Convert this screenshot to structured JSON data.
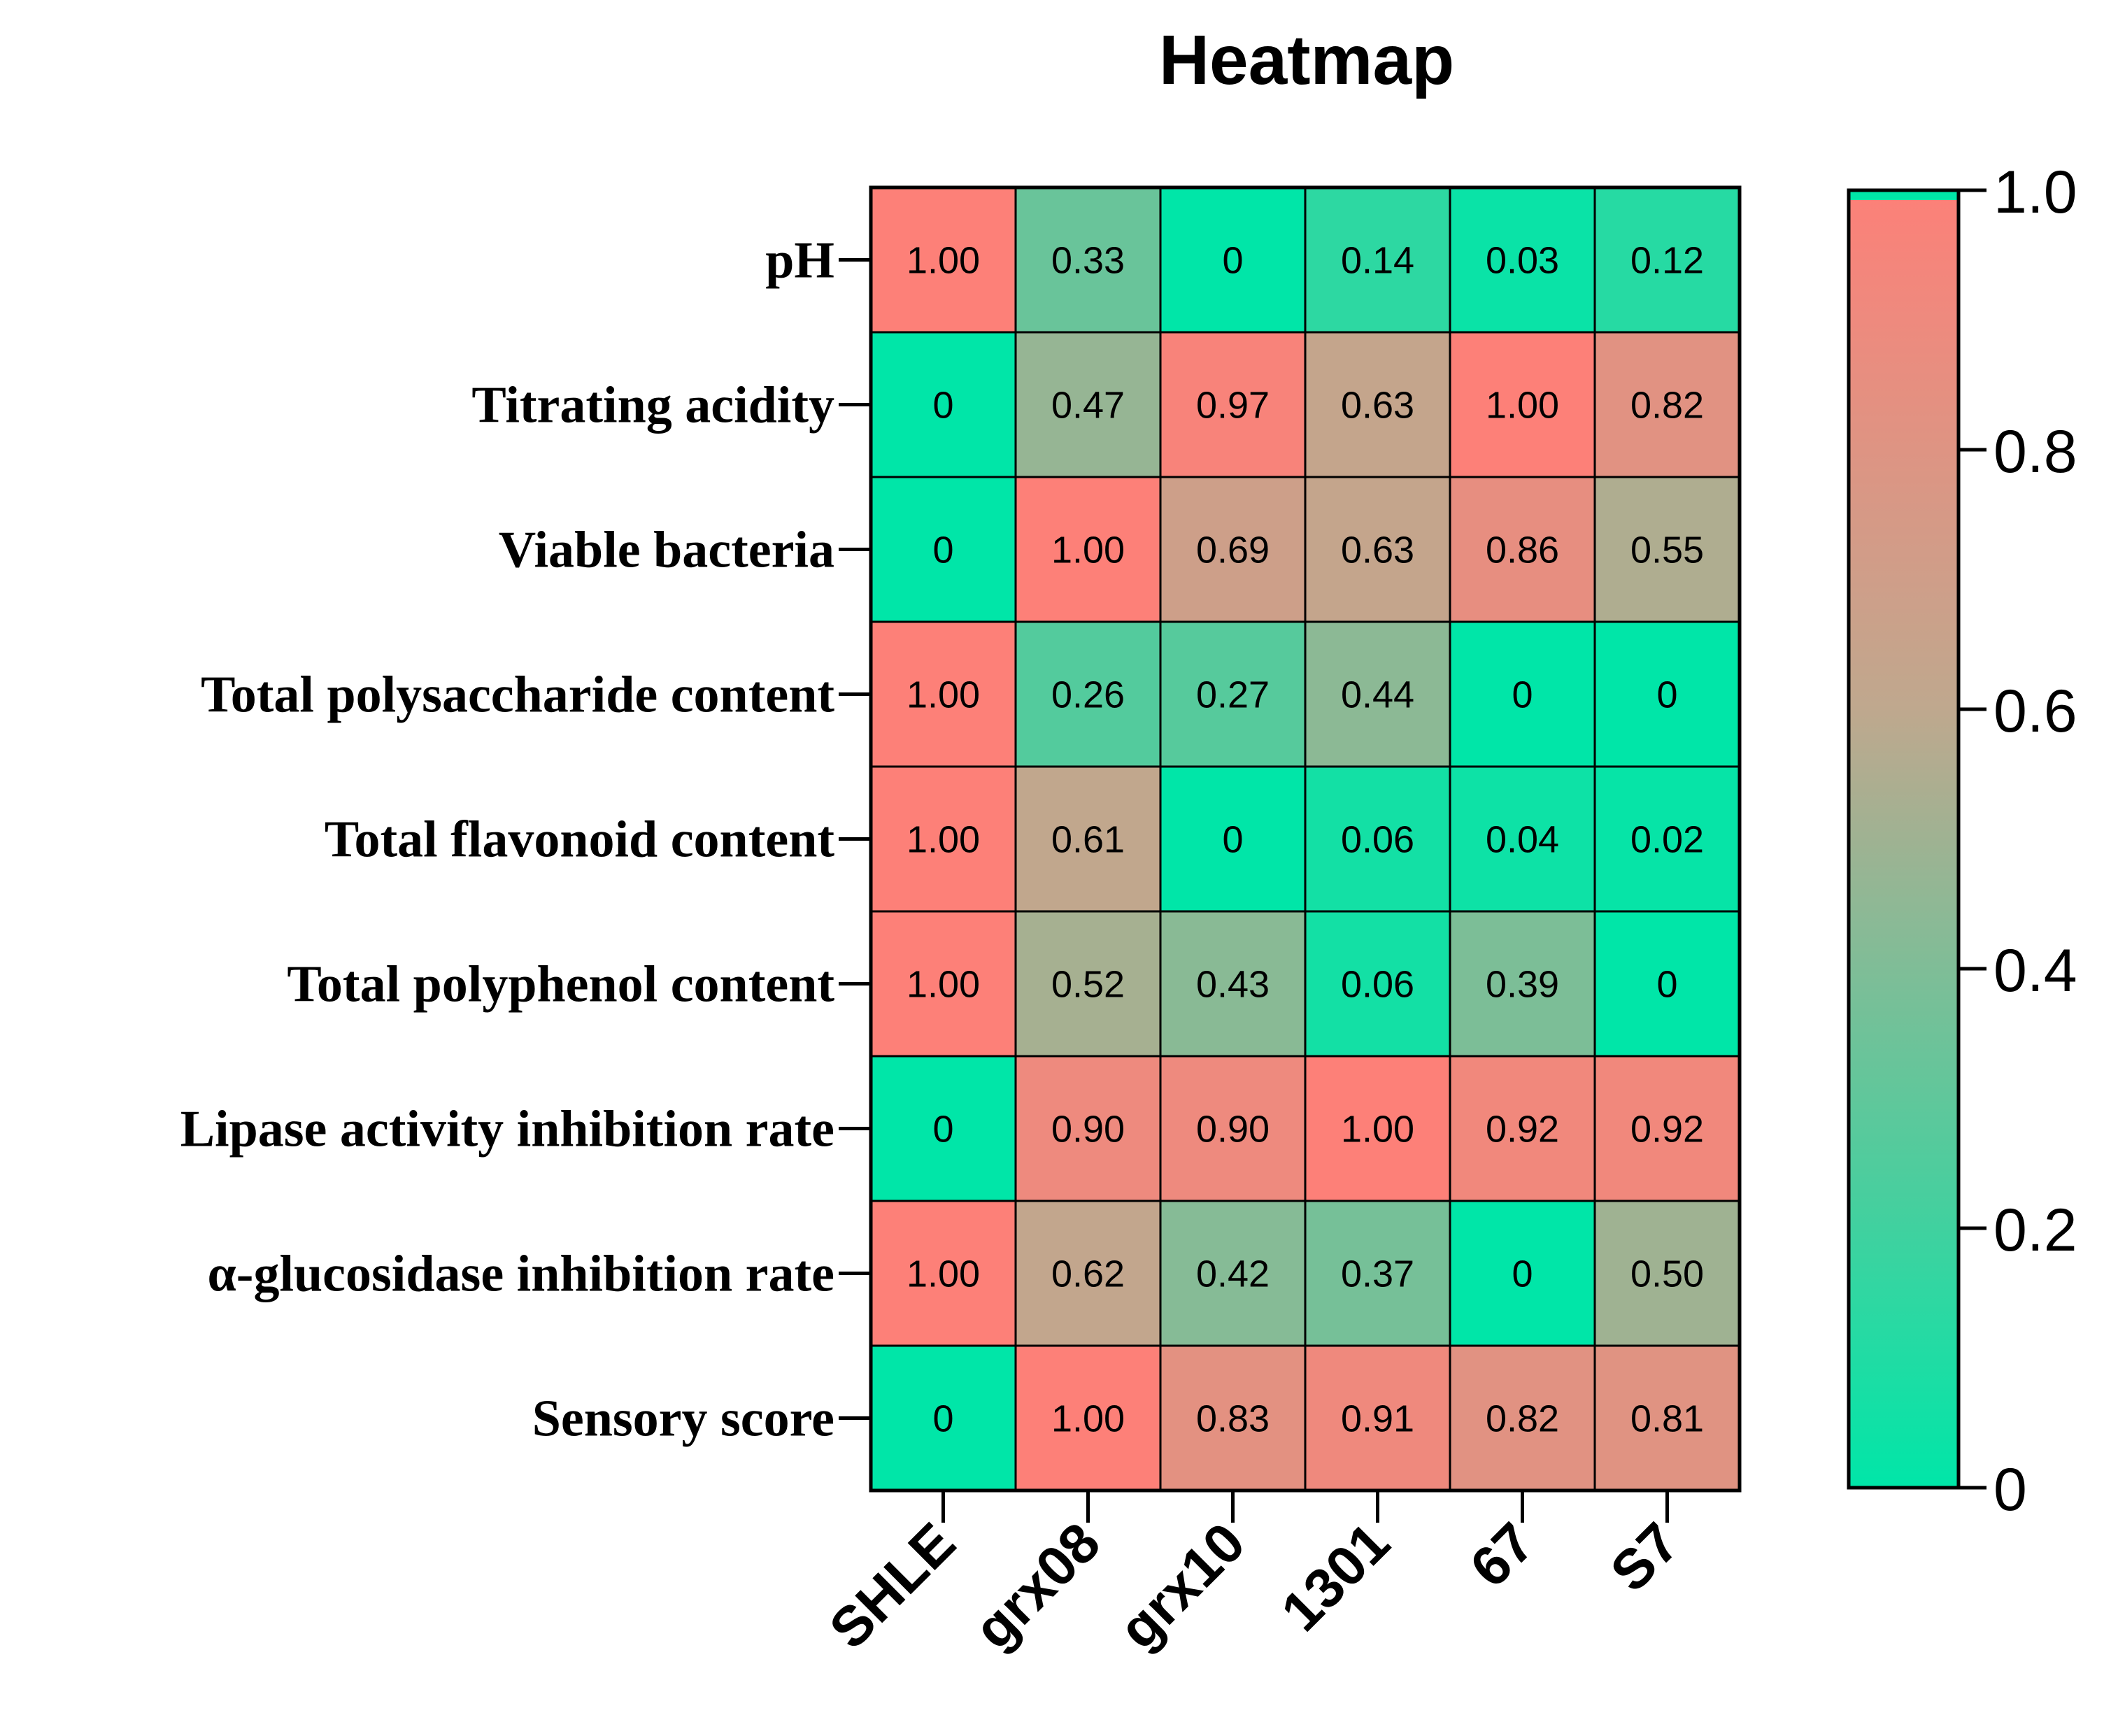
{
  "chart_data": {
    "type": "heatmap",
    "title": "Heatmap",
    "xlabel": "",
    "ylabel": "",
    "columns": [
      "SHLE",
      "grx08",
      "grx10",
      "1301",
      "67",
      "S7"
    ],
    "rows": [
      "pH",
      "Titrating acidity",
      "Viable bacteria",
      "Total polysaccharide content",
      "Total flavonoid content",
      "Total polyphenol content",
      "Lipase activity inhibition rate",
      "α-glucosidase inhibition rate",
      "Sensory score"
    ],
    "values": [
      [
        1.0,
        0.33,
        0,
        0.14,
        0.03,
        0.12
      ],
      [
        0,
        0.47,
        0.97,
        0.63,
        1.0,
        0.82
      ],
      [
        0,
        1.0,
        0.69,
        0.63,
        0.86,
        0.55
      ],
      [
        1.0,
        0.26,
        0.27,
        0.44,
        0,
        0
      ],
      [
        1.0,
        0.61,
        0,
        0.06,
        0.04,
        0.02
      ],
      [
        1.0,
        0.52,
        0.43,
        0.06,
        0.39,
        0
      ],
      [
        0,
        0.9,
        0.9,
        1.0,
        0.92,
        0.92
      ],
      [
        1.0,
        0.62,
        0.42,
        0.37,
        0,
        0.5
      ],
      [
        0,
        1.0,
        0.83,
        0.91,
        0.82,
        0.81
      ]
    ],
    "value_labels": [
      [
        "1.00",
        "0.33",
        "0",
        "0.14",
        "0.03",
        "0.12"
      ],
      [
        "0",
        "0.47",
        "0.97",
        "0.63",
        "1.00",
        "0.82"
      ],
      [
        "0",
        "1.00",
        "0.69",
        "0.63",
        "0.86",
        "0.55"
      ],
      [
        "1.00",
        "0.26",
        "0.27",
        "0.44",
        "0",
        "0"
      ],
      [
        "1.00",
        "0.61",
        "0",
        "0.06",
        "0.04",
        "0.02"
      ],
      [
        "1.00",
        "0.52",
        "0.43",
        "0.06",
        "0.39",
        "0"
      ],
      [
        "0",
        "0.90",
        "0.90",
        "1.00",
        "0.92",
        "0.92"
      ],
      [
        "1.00",
        "0.62",
        "0.42",
        "0.37",
        "0",
        "0.50"
      ],
      [
        "0",
        "1.00",
        "0.83",
        "0.91",
        "0.82",
        "0.81"
      ]
    ],
    "colorbar": {
      "range": [
        0,
        1.0
      ],
      "ticks": [
        0,
        0.2,
        0.4,
        0.6,
        0.8,
        1.0
      ],
      "tick_labels": [
        "0",
        "0.2",
        "0.4",
        "0.6",
        "0.8",
        "1.0"
      ],
      "low_color": "#00e6a8",
      "mid_color": "#bfa88e",
      "high_color": "#fd8078",
      "top_cap_color": "#00e6a8"
    },
    "cell_border_color": "#000000",
    "legend_position": "right"
  }
}
